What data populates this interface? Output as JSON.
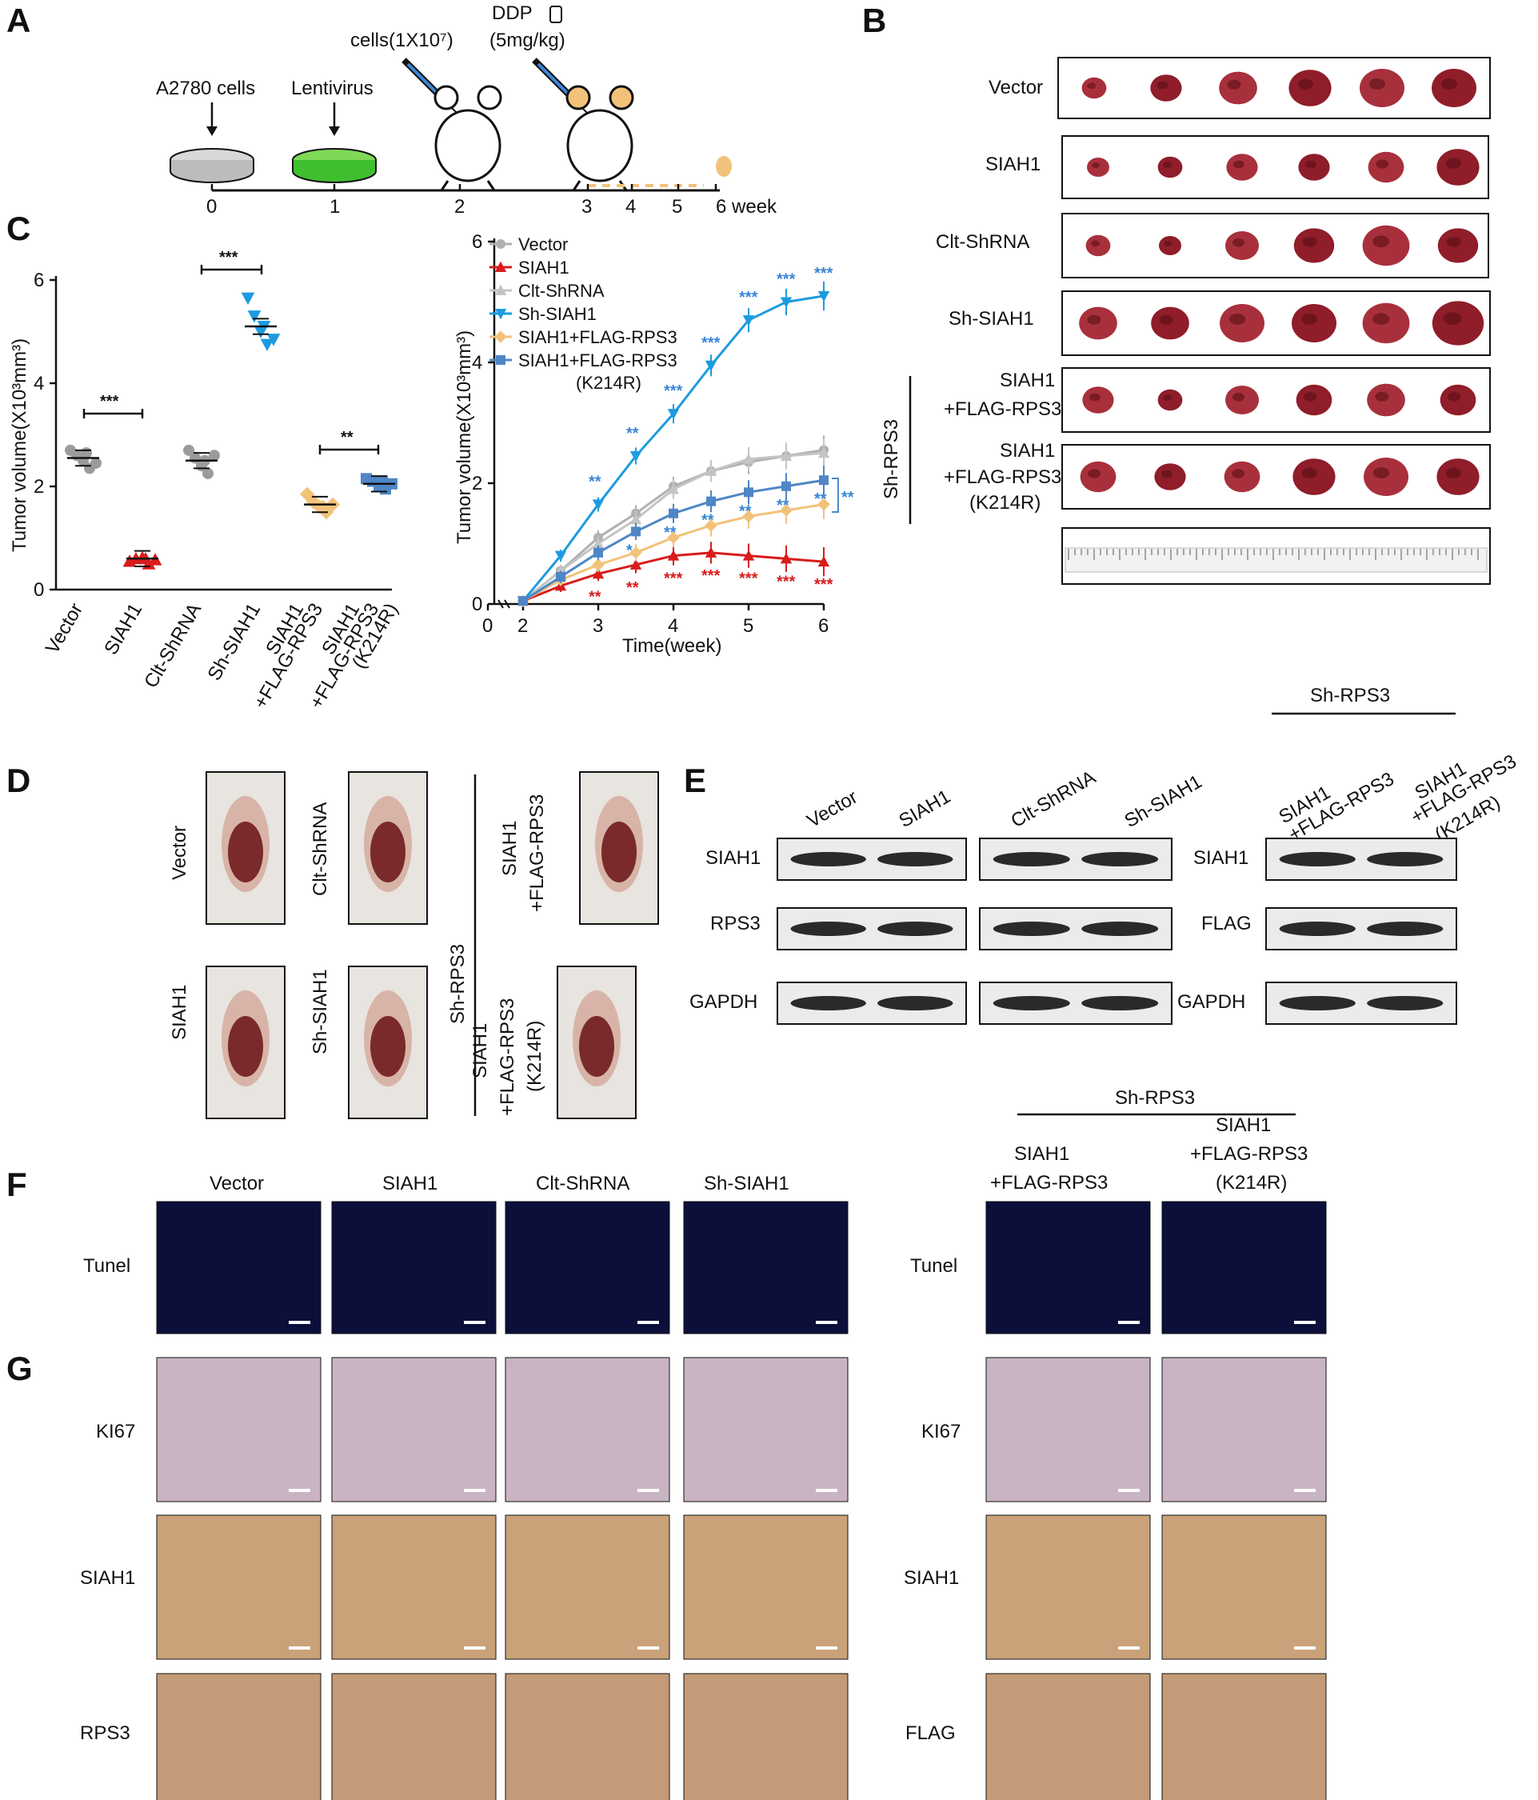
{
  "letters": {
    "A": "A",
    "B": "B",
    "C": "C",
    "D": "D",
    "E": "E",
    "F": "F",
    "G": "G"
  },
  "panelA": {
    "cells_label": "A2780 cells",
    "lenti_label": "Lentivirus",
    "inject_label": "cells(1X10⁷)",
    "ddp_label": "DDP",
    "ddp_dose": "(5mg/kg)",
    "ticks": [
      "0",
      "1",
      "2",
      "3",
      "4",
      "5",
      "6 week"
    ]
  },
  "panelB": {
    "rows": [
      "Vector",
      "SIAH1",
      "Clt-ShRNA",
      "Sh-SIAH1",
      "SIAH1",
      "+FLAG-RPS3",
      "SIAH1",
      "+FLAG-RPS3",
      "(K214R)"
    ],
    "group": "Sh-RPS3"
  },
  "scatter": {
    "ylabel": "Tumor volume(X10³mm³)",
    "yticks": [
      "0",
      "2",
      "4",
      "6"
    ],
    "categories": [
      "Vector",
      "SIAH1",
      "Clt-ShRNA",
      "Sh-SIAH1",
      "SIAH1",
      "+FLAG-RPS3",
      "SIAH1",
      "+FLAG-RPS3",
      "(K214R)"
    ],
    "sig": [
      "***",
      "***",
      "**"
    ],
    "colors": {
      "grey": "#9b9b9b",
      "red": "#d81c1c",
      "blue": "#1d9be0",
      "orange": "#f2c27a",
      "steel": "#4f86c6"
    }
  },
  "chart_data": {
    "type": "line",
    "ylabel": "Tumor volume(X10³mm³)",
    "xlabel": "Time(week)",
    "yticks": [
      "0",
      "2",
      "4",
      "6"
    ],
    "xticks": [
      "0",
      "2",
      "3",
      "4",
      "5",
      "6"
    ],
    "x": [
      2,
      2.5,
      3,
      3.5,
      4,
      4.5,
      5,
      5.5,
      6
    ],
    "ylim": [
      0,
      6
    ],
    "series": [
      {
        "name": "Vector",
        "color": "#b0b0b0",
        "marker": "circle",
        "values": [
          0.05,
          0.55,
          1.1,
          1.5,
          1.95,
          2.2,
          2.35,
          2.45,
          2.55
        ]
      },
      {
        "name": "SIAH1",
        "color": "#d81c1c",
        "marker": "triangle-up",
        "values": [
          0.05,
          0.3,
          0.5,
          0.65,
          0.8,
          0.85,
          0.8,
          0.75,
          0.7
        ]
      },
      {
        "name": "Clt-ShRNA",
        "color": "#c4c4c4",
        "marker": "triangle-up",
        "values": [
          0.05,
          0.55,
          1.0,
          1.4,
          1.9,
          2.2,
          2.4,
          2.45,
          2.5
        ]
      },
      {
        "name": "Sh-SIAH1",
        "color": "#1d9be0",
        "marker": "triangle-down",
        "values": [
          0.05,
          0.8,
          1.65,
          2.45,
          3.15,
          3.95,
          4.7,
          5.0,
          5.1
        ]
      },
      {
        "name": "SIAH1+FLAG-RPS3",
        "color": "#f2c27a",
        "marker": "diamond",
        "values": [
          0.05,
          0.4,
          0.65,
          0.85,
          1.1,
          1.3,
          1.45,
          1.55,
          1.65
        ]
      },
      {
        "name": "SIAH1+FLAG-RPS3",
        "name2": "(K214R)",
        "color": "#4f86c6",
        "marker": "square",
        "values": [
          0.05,
          0.45,
          0.85,
          1.2,
          1.5,
          1.7,
          1.85,
          1.95,
          2.05
        ]
      }
    ],
    "sig_blue": [
      "**",
      "**",
      "***",
      "***",
      "***",
      "***",
      "***"
    ],
    "sig_steel": [
      "*",
      "**",
      "**",
      "**",
      "**",
      "**"
    ],
    "sig_red": [
      "**",
      "**",
      "***",
      "***",
      "***",
      "***",
      "***"
    ]
  },
  "panelD": {
    "labels": [
      "Vector",
      "Clt-ShRNA",
      "SIAH1",
      "Sh-SIAH1"
    ],
    "group": "Sh-RPS3",
    "right": [
      "SIAH1",
      "+FLAG-RPS3",
      "SIAH1",
      "+FLAG-RPS3",
      "(K214R)"
    ]
  },
  "panelE": {
    "cols": [
      "Vector",
      "SIAH1",
      "Clt-ShRNA",
      "Sh-SIAH1",
      "SIAH1",
      "+FLAG-RPS3",
      "SIAH1",
      "+FLAG-RPS3",
      "(K214R)"
    ],
    "group": "Sh-RPS3",
    "rowsL": [
      "SIAH1",
      "RPS3",
      "GAPDH"
    ],
    "rowsR": [
      "SIAH1",
      "FLAG",
      "GAPDH"
    ]
  },
  "panelFG": {
    "cols": [
      "Vector",
      "SIAH1",
      "Clt-ShRNA",
      "Sh-SIAH1"
    ],
    "group": "Sh-RPS3",
    "colsR": [
      "SIAH1",
      "+FLAG-RPS3",
      "SIAH1",
      "+FLAG-RPS3",
      "(K214R)"
    ],
    "rowsL": [
      "Tunel",
      "KI67",
      "SIAH1",
      "RPS3"
    ],
    "rowsR": [
      "Tunel",
      "KI67",
      "SIAH1",
      "FLAG"
    ]
  }
}
